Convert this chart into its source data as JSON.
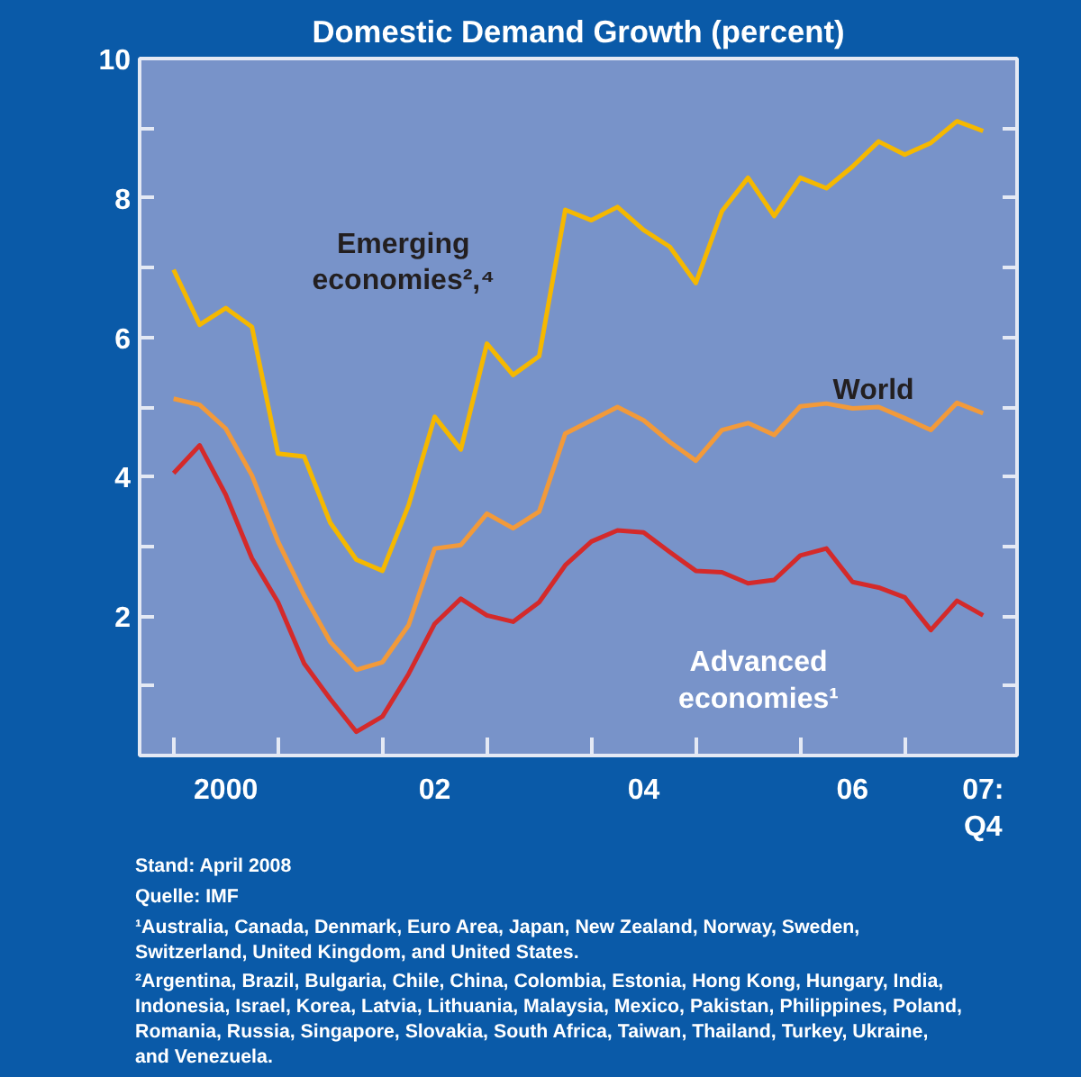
{
  "chart_data": {
    "type": "line",
    "title": "Domestic Demand Growth (percent)",
    "categories": [
      null,
      null,
      "2000",
      null,
      null,
      null,
      null,
      null,
      null,
      null,
      "02",
      null,
      null,
      null,
      null,
      null,
      null,
      null,
      "04",
      null,
      null,
      null,
      null,
      null,
      null,
      null,
      "06",
      null,
      null,
      null,
      null,
      "07:\nQ4"
    ],
    "ylim": [
      0,
      10
    ],
    "yticks": [
      {
        "value": 1,
        "label": null
      },
      2,
      {
        "value": 3,
        "label": null
      },
      4,
      {
        "value": 5,
        "label": null
      },
      6,
      {
        "value": 7,
        "label": null
      },
      8,
      {
        "value": 9,
        "label": null
      },
      10
    ],
    "series": [
      {
        "name": "Emerging economies²,⁴",
        "color": "#f5b800",
        "values": [
          6.97,
          6.18,
          6.42,
          6.15,
          4.33,
          4.29,
          3.34,
          2.81,
          2.65,
          3.59,
          4.86,
          4.39,
          5.91,
          5.46,
          5.73,
          7.83,
          7.68,
          7.87,
          7.54,
          7.3,
          6.78,
          7.81,
          8.29,
          7.74,
          8.29,
          8.14,
          8.45,
          8.81,
          8.62,
          8.79,
          9.1,
          8.96
        ]
      },
      {
        "name": "World",
        "color": "#f29a3a",
        "values": [
          5.12,
          5.03,
          4.69,
          4.02,
          3.07,
          2.3,
          1.63,
          1.23,
          1.34,
          1.87,
          2.97,
          3.02,
          3.47,
          3.26,
          3.5,
          4.62,
          4.81,
          5.0,
          4.81,
          4.5,
          4.23,
          4.67,
          4.77,
          4.6,
          5.01,
          5.05,
          4.98,
          5.0,
          4.84,
          4.67,
          5.06,
          4.91
        ]
      },
      {
        "name": "Advanced economies¹",
        "color": "#d42a2a",
        "values": [
          4.05,
          4.45,
          3.74,
          2.83,
          2.2,
          1.32,
          0.81,
          0.34,
          0.56,
          1.17,
          1.89,
          2.25,
          2.01,
          1.92,
          2.2,
          2.73,
          3.07,
          3.23,
          3.2,
          2.92,
          2.65,
          2.63,
          2.47,
          2.52,
          2.87,
          2.97,
          2.49,
          2.41,
          2.27,
          1.8,
          2.22,
          2.01
        ]
      }
    ],
    "annotations": [
      "Stand: April 2008",
      "Quelle: IMF",
      "¹Australia, Canada, Denmark, Euro Area, Japan, New Zealand, Norway, Sweden, Switzerland, United Kingdom, and United States.",
      "²Argentina, Brazil, Bulgaria, Chile, China, Colombia, Estonia, Hong Kong, Hungary, India, Indonesia, Israel, Korea, Latvia, Lithuania, Malaysia, Mexico, Pakistan, Philippines, Poland, Romania, Russia, Singapore, Slovakia, South Africa, Taiwan, Thailand, Turkey, Ukraine, and Venezuela."
    ]
  }
}
